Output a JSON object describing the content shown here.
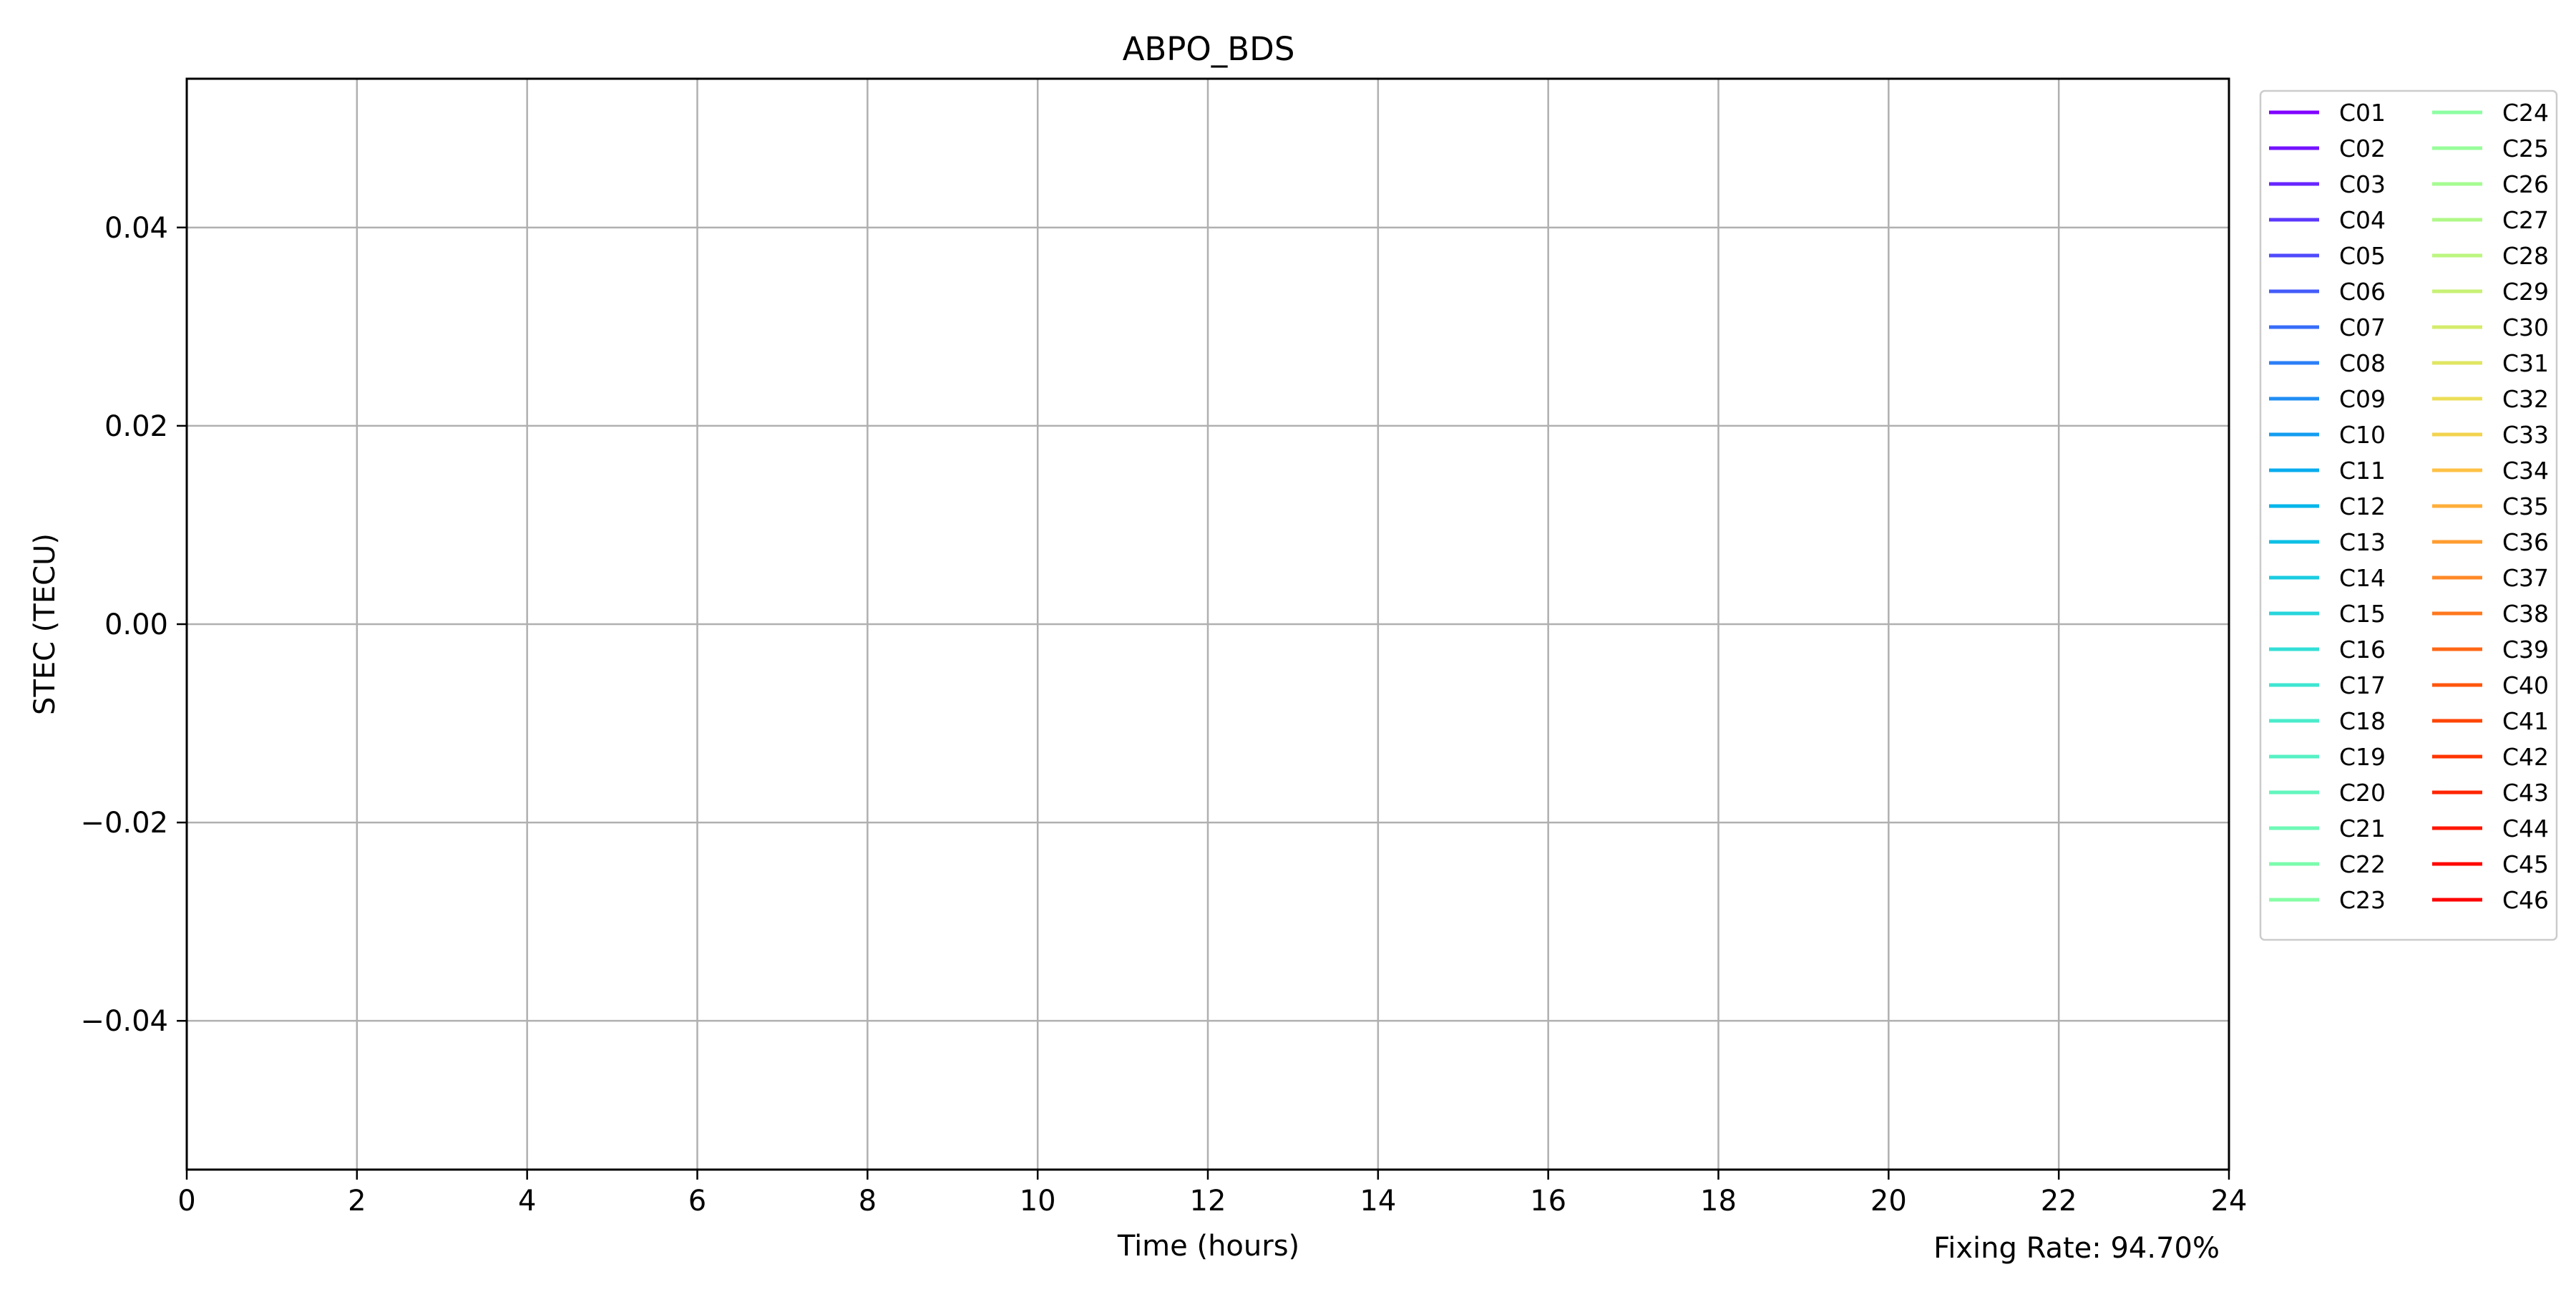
{
  "chart_data": {
    "type": "line",
    "title": "ABPO_BDS",
    "xlabel": "Time (hours)",
    "ylabel": "STEC (TECU)",
    "xlim": [
      0,
      24
    ],
    "ylim": [
      -0.055,
      0.055
    ],
    "x_ticks": [
      0,
      2,
      4,
      6,
      8,
      10,
      12,
      14,
      16,
      18,
      20,
      22,
      24
    ],
    "x_tick_labels": [
      "0",
      "2",
      "4",
      "6",
      "8",
      "10",
      "12",
      "14",
      "16",
      "18",
      "20",
      "22",
      "24"
    ],
    "y_ticks": [
      -0.04,
      -0.02,
      0.0,
      0.02,
      0.04
    ],
    "y_tick_labels": [
      "−0.04",
      "−0.02",
      "0.00",
      "0.02",
      "0.04"
    ],
    "grid": true,
    "legend_placement": "outside-right-top",
    "legend_columns": 2,
    "series": [
      {
        "name": "C01",
        "color": "#8000ff",
        "values": []
      },
      {
        "name": "C02",
        "color": "#7412ff",
        "values": []
      },
      {
        "name": "C03",
        "color": "#6826fe",
        "values": []
      },
      {
        "name": "C04",
        "color": "#5c38fd",
        "values": []
      },
      {
        "name": "C05",
        "color": "#504afc",
        "values": []
      },
      {
        "name": "C06",
        "color": "#445cfa",
        "values": []
      },
      {
        "name": "C07",
        "color": "#386df9",
        "values": []
      },
      {
        "name": "C08",
        "color": "#2c7ef7",
        "values": []
      },
      {
        "name": "C09",
        "color": "#208ef4",
        "values": []
      },
      {
        "name": "C10",
        "color": "#149df1",
        "values": []
      },
      {
        "name": "C11",
        "color": "#08aced",
        "values": []
      },
      {
        "name": "C12",
        "color": "#02b5ea",
        "values": []
      },
      {
        "name": "C13",
        "color": "#0ec0e6",
        "values": []
      },
      {
        "name": "C14",
        "color": "#1acce1",
        "values": []
      },
      {
        "name": "C15",
        "color": "#26d6dc",
        "values": []
      },
      {
        "name": "C16",
        "color": "#32dfd7",
        "values": []
      },
      {
        "name": "C17",
        "color": "#3ee6d1",
        "values": []
      },
      {
        "name": "C18",
        "color": "#4aecca",
        "values": []
      },
      {
        "name": "C19",
        "color": "#56f1c4",
        "values": []
      },
      {
        "name": "C20",
        "color": "#62f6bd",
        "values": []
      },
      {
        "name": "C21",
        "color": "#6ef9b6",
        "values": []
      },
      {
        "name": "C22",
        "color": "#7afcae",
        "values": []
      },
      {
        "name": "C23",
        "color": "#86fea6",
        "values": []
      },
      {
        "name": "C24",
        "color": "#8cfea2",
        "values": []
      },
      {
        "name": "C25",
        "color": "#98fe9a",
        "values": []
      },
      {
        "name": "C26",
        "color": "#a4fc91",
        "values": []
      },
      {
        "name": "C27",
        "color": "#b0f988",
        "values": []
      },
      {
        "name": "C28",
        "color": "#bcf67f",
        "values": []
      },
      {
        "name": "C29",
        "color": "#c8f175",
        "values": []
      },
      {
        "name": "C30",
        "color": "#d4ec6b",
        "values": []
      },
      {
        "name": "C31",
        "color": "#e0e661",
        "values": []
      },
      {
        "name": "C32",
        "color": "#ecdf57",
        "values": []
      },
      {
        "name": "C33",
        "color": "#f3d34e",
        "values": []
      },
      {
        "name": "C34",
        "color": "#ffc044",
        "values": []
      },
      {
        "name": "C35",
        "color": "#ffae3a",
        "values": []
      },
      {
        "name": "C36",
        "color": "#ff9c30",
        "values": []
      },
      {
        "name": "C37",
        "color": "#ff8a27",
        "values": []
      },
      {
        "name": "C38",
        "color": "#ff781e",
        "values": []
      },
      {
        "name": "C39",
        "color": "#ff6715",
        "values": []
      },
      {
        "name": "C40",
        "color": "#ff560d",
        "values": []
      },
      {
        "name": "C41",
        "color": "#ff4506",
        "values": []
      },
      {
        "name": "C42",
        "color": "#ff3500",
        "values": []
      },
      {
        "name": "C43",
        "color": "#ff2500",
        "values": []
      },
      {
        "name": "C44",
        "color": "#ff1600",
        "values": []
      },
      {
        "name": "C45",
        "color": "#ff0800",
        "values": []
      },
      {
        "name": "C46",
        "color": "#ff0000",
        "values": []
      }
    ],
    "annotation": "Fixing Rate: 94.70%"
  }
}
